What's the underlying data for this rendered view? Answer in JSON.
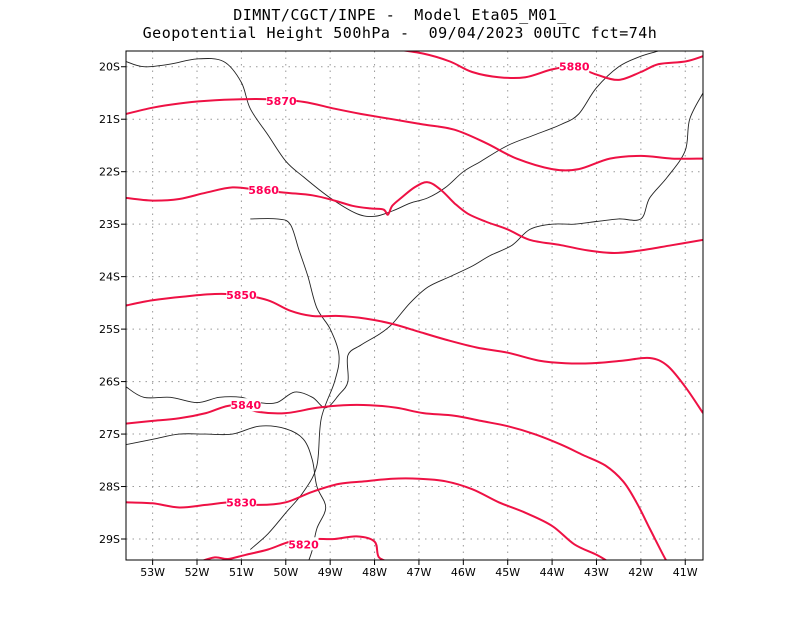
{
  "header": {
    "line1": "DIMNT/CGCT/INPE -  Model Eta05_M01_",
    "line2": "Geopotential Height 500hPa -  09/04/2023 00UTC fct=74h"
  },
  "map": {
    "lon_range": [
      -53.6,
      -40.6
    ],
    "lat_range": [
      -29.4,
      -19.7
    ],
    "lon_ticks": [
      -53,
      -52,
      -51,
      -50,
      -49,
      -48,
      -47,
      -46,
      -45,
      -44,
      -43,
      -42,
      -41
    ],
    "lon_labels": [
      "53W",
      "52W",
      "51W",
      "50W",
      "49W",
      "48W",
      "47W",
      "46W",
      "45W",
      "44W",
      "43W",
      "42W",
      "41W"
    ],
    "lat_ticks": [
      -20,
      -21,
      -22,
      -23,
      -24,
      -25,
      -26,
      -27,
      -28,
      -29
    ],
    "lat_labels": [
      "20S",
      "21S",
      "22S",
      "23S",
      "24S",
      "25S",
      "26S",
      "27S",
      "28S",
      "29S"
    ],
    "grid": true,
    "contour_color": "#ee1144",
    "contour_label_color": "#ff0055",
    "contours": [
      {
        "label": "5880",
        "label_at": [
          -43.5,
          -20.0
        ],
        "points": [
          [
            -47.7,
            -19.65
          ],
          [
            -46.9,
            -19.75
          ],
          [
            -46.3,
            -19.9
          ],
          [
            -45.8,
            -20.1
          ],
          [
            -45.2,
            -20.2
          ],
          [
            -44.6,
            -20.2
          ],
          [
            -44.0,
            -20.05
          ],
          [
            -43.5,
            -20.0
          ],
          [
            -43.0,
            -20.15
          ],
          [
            -42.5,
            -20.25
          ],
          [
            -42.0,
            -20.1
          ],
          [
            -41.6,
            -19.95
          ],
          [
            -41.0,
            -19.9
          ],
          [
            -40.6,
            -19.8
          ]
        ]
      },
      {
        "label": "5870",
        "label_at": [
          -50.1,
          -20.65
        ],
        "points": [
          [
            -53.6,
            -20.9
          ],
          [
            -53.0,
            -20.78
          ],
          [
            -52.4,
            -20.7
          ],
          [
            -51.8,
            -20.65
          ],
          [
            -51.0,
            -20.62
          ],
          [
            -50.4,
            -20.62
          ],
          [
            -49.6,
            -20.67
          ],
          [
            -48.9,
            -20.8
          ],
          [
            -48.3,
            -20.9
          ],
          [
            -47.6,
            -21.0
          ],
          [
            -46.9,
            -21.1
          ],
          [
            -46.2,
            -21.2
          ],
          [
            -45.5,
            -21.45
          ],
          [
            -44.8,
            -21.75
          ],
          [
            -44.0,
            -21.95
          ],
          [
            -43.4,
            -21.95
          ],
          [
            -42.7,
            -21.75
          ],
          [
            -42.0,
            -21.7
          ],
          [
            -41.3,
            -21.75
          ],
          [
            -40.6,
            -21.75
          ]
        ]
      },
      {
        "label": "5860",
        "label_at": [
          -50.5,
          -22.35
        ],
        "points": [
          [
            -53.6,
            -22.5
          ],
          [
            -53.0,
            -22.55
          ],
          [
            -52.4,
            -22.52
          ],
          [
            -51.8,
            -22.4
          ],
          [
            -51.2,
            -22.3
          ],
          [
            -50.6,
            -22.35
          ],
          [
            -50.0,
            -22.4
          ],
          [
            -49.4,
            -22.45
          ],
          [
            -48.9,
            -22.55
          ],
          [
            -48.5,
            -22.65
          ],
          [
            -48.1,
            -22.7
          ],
          [
            -47.8,
            -22.72
          ],
          [
            -47.7,
            -22.82
          ],
          [
            -47.6,
            -22.65
          ],
          [
            -47.4,
            -22.5
          ],
          [
            -47.1,
            -22.3
          ],
          [
            -46.8,
            -22.2
          ],
          [
            -46.5,
            -22.35
          ],
          [
            -46.2,
            -22.6
          ],
          [
            -45.9,
            -22.8
          ],
          [
            -45.5,
            -22.95
          ],
          [
            -45.0,
            -23.1
          ],
          [
            -44.5,
            -23.3
          ],
          [
            -43.8,
            -23.4
          ],
          [
            -43.2,
            -23.5
          ],
          [
            -42.6,
            -23.55
          ],
          [
            -42.0,
            -23.5
          ],
          [
            -41.3,
            -23.4
          ],
          [
            -40.6,
            -23.3
          ]
        ]
      },
      {
        "label": "5850",
        "label_at": [
          -51.0,
          -24.35
        ],
        "points": [
          [
            -53.6,
            -24.55
          ],
          [
            -53.0,
            -24.45
          ],
          [
            -52.3,
            -24.38
          ],
          [
            -51.6,
            -24.33
          ],
          [
            -51.0,
            -24.35
          ],
          [
            -50.4,
            -24.45
          ],
          [
            -49.9,
            -24.65
          ],
          [
            -49.4,
            -24.75
          ],
          [
            -48.8,
            -24.75
          ],
          [
            -48.2,
            -24.8
          ],
          [
            -47.6,
            -24.9
          ],
          [
            -47.0,
            -25.05
          ],
          [
            -46.4,
            -25.2
          ],
          [
            -45.7,
            -25.35
          ],
          [
            -45.0,
            -25.45
          ],
          [
            -44.3,
            -25.6
          ],
          [
            -43.7,
            -25.65
          ],
          [
            -43.1,
            -25.65
          ],
          [
            -42.4,
            -25.6
          ],
          [
            -41.8,
            -25.55
          ],
          [
            -41.4,
            -25.7
          ],
          [
            -41.0,
            -26.1
          ],
          [
            -40.6,
            -26.6
          ]
        ]
      },
      {
        "label": "5840",
        "label_at": [
          -50.9,
          -26.45
        ],
        "points": [
          [
            -53.6,
            -26.8
          ],
          [
            -53.0,
            -26.75
          ],
          [
            -52.4,
            -26.7
          ],
          [
            -51.8,
            -26.6
          ],
          [
            -51.2,
            -26.45
          ],
          [
            -50.6,
            -26.58
          ],
          [
            -50.0,
            -26.6
          ],
          [
            -49.3,
            -26.5
          ],
          [
            -48.7,
            -26.45
          ],
          [
            -48.1,
            -26.45
          ],
          [
            -47.5,
            -26.5
          ],
          [
            -46.9,
            -26.6
          ],
          [
            -46.2,
            -26.65
          ],
          [
            -45.6,
            -26.75
          ],
          [
            -45.0,
            -26.85
          ],
          [
            -44.4,
            -27.0
          ],
          [
            -43.8,
            -27.2
          ],
          [
            -43.3,
            -27.4
          ],
          [
            -42.8,
            -27.6
          ],
          [
            -42.4,
            -27.9
          ],
          [
            -42.1,
            -28.3
          ],
          [
            -41.8,
            -28.8
          ],
          [
            -41.5,
            -29.3
          ],
          [
            -41.4,
            -29.45
          ]
        ]
      },
      {
        "label": "5830",
        "label_at": [
          -51.0,
          -28.3
        ],
        "points": [
          [
            -53.6,
            -28.3
          ],
          [
            -53.0,
            -28.32
          ],
          [
            -52.4,
            -28.4
          ],
          [
            -51.8,
            -28.35
          ],
          [
            -51.2,
            -28.3
          ],
          [
            -50.6,
            -28.35
          ],
          [
            -50.0,
            -28.3
          ],
          [
            -49.4,
            -28.1
          ],
          [
            -48.8,
            -27.95
          ],
          [
            -48.2,
            -27.9
          ],
          [
            -47.6,
            -27.85
          ],
          [
            -47.0,
            -27.85
          ],
          [
            -46.4,
            -27.9
          ],
          [
            -45.8,
            -28.05
          ],
          [
            -45.2,
            -28.3
          ],
          [
            -44.6,
            -28.5
          ],
          [
            -44.0,
            -28.75
          ],
          [
            -43.5,
            -29.1
          ],
          [
            -43.0,
            -29.3
          ],
          [
            -42.7,
            -29.45
          ]
        ]
      },
      {
        "label": "5820",
        "label_at": [
          -49.6,
          -29.1
        ],
        "points": [
          [
            -52.0,
            -29.45
          ],
          [
            -51.6,
            -29.35
          ],
          [
            -51.3,
            -29.38
          ],
          [
            -50.9,
            -29.3
          ],
          [
            -50.4,
            -29.2
          ],
          [
            -49.9,
            -29.05
          ],
          [
            -49.4,
            -29.0
          ],
          [
            -48.9,
            -29.0
          ],
          [
            -48.4,
            -28.95
          ],
          [
            -48.0,
            -29.05
          ],
          [
            -47.9,
            -29.35
          ],
          [
            -47.6,
            -29.45
          ]
        ]
      }
    ],
    "coastline": [
      [
        [
          -53.6,
          -26.1
        ],
        [
          -53.2,
          -26.3
        ],
        [
          -52.6,
          -26.3
        ],
        [
          -52.0,
          -26.4
        ],
        [
          -51.5,
          -26.3
        ],
        [
          -51.0,
          -26.3
        ],
        [
          -50.6,
          -26.4
        ],
        [
          -50.2,
          -26.4
        ],
        [
          -49.8,
          -26.2
        ],
        [
          -49.4,
          -26.3
        ],
        [
          -49.1,
          -26.5
        ],
        [
          -48.8,
          -26.25
        ],
        [
          -48.6,
          -26.0
        ],
        [
          -48.6,
          -25.5
        ],
        [
          -48.3,
          -25.3
        ],
        [
          -47.9,
          -25.1
        ],
        [
          -47.6,
          -24.9
        ],
        [
          -47.2,
          -24.5
        ],
        [
          -46.8,
          -24.2
        ],
        [
          -46.3,
          -24.0
        ],
        [
          -45.8,
          -23.8
        ],
        [
          -45.4,
          -23.6
        ],
        [
          -44.9,
          -23.4
        ],
        [
          -44.5,
          -23.1
        ],
        [
          -44.0,
          -23.0
        ],
        [
          -43.5,
          -23.0
        ],
        [
          -43.0,
          -22.95
        ],
        [
          -42.5,
          -22.9
        ],
        [
          -42.0,
          -22.9
        ],
        [
          -41.8,
          -22.5
        ],
        [
          -41.4,
          -22.1
        ],
        [
          -41.0,
          -21.6
        ],
        [
          -40.9,
          -21.0
        ],
        [
          -40.6,
          -20.5
        ]
      ],
      [
        [
          -53.6,
          -27.2
        ],
        [
          -53.0,
          -27.1
        ],
        [
          -52.4,
          -27.0
        ],
        [
          -51.8,
          -27.0
        ],
        [
          -51.2,
          -27.0
        ],
        [
          -50.6,
          -26.85
        ],
        [
          -50.0,
          -26.9
        ],
        [
          -49.6,
          -27.1
        ],
        [
          -49.4,
          -27.5
        ],
        [
          -49.3,
          -28.0
        ],
        [
          -49.1,
          -28.4
        ],
        [
          -49.3,
          -28.8
        ],
        [
          -49.4,
          -29.2
        ],
        [
          -49.5,
          -29.45
        ]
      ],
      [
        [
          -53.6,
          -19.9
        ],
        [
          -53.2,
          -20.0
        ],
        [
          -52.6,
          -19.95
        ],
        [
          -52.0,
          -19.85
        ],
        [
          -51.4,
          -19.9
        ],
        [
          -51.0,
          -20.3
        ],
        [
          -50.8,
          -20.8
        ],
        [
          -50.4,
          -21.3
        ],
        [
          -50.0,
          -21.8
        ],
        [
          -49.6,
          -22.1
        ],
        [
          -49.0,
          -22.5
        ],
        [
          -48.4,
          -22.8
        ],
        [
          -48.0,
          -22.85
        ],
        [
          -47.6,
          -22.75
        ],
        [
          -47.2,
          -22.6
        ],
        [
          -46.8,
          -22.5
        ],
        [
          -46.4,
          -22.3
        ],
        [
          -46.0,
          -22.0
        ],
        [
          -45.6,
          -21.8
        ],
        [
          -45.0,
          -21.5
        ],
        [
          -44.4,
          -21.3
        ],
        [
          -43.8,
          -21.1
        ],
        [
          -43.4,
          -20.9
        ],
        [
          -43.0,
          -20.4
        ],
        [
          -42.5,
          -20.0
        ],
        [
          -42.0,
          -19.8
        ],
        [
          -41.6,
          -19.7
        ]
      ],
      [
        [
          -50.8,
          -22.9
        ],
        [
          -50.2,
          -22.9
        ],
        [
          -49.9,
          -23.0
        ],
        [
          -49.7,
          -23.5
        ],
        [
          -49.5,
          -24.0
        ],
        [
          -49.3,
          -24.6
        ],
        [
          -49.0,
          -25.0
        ],
        [
          -48.8,
          -25.5
        ],
        [
          -48.9,
          -26.0
        ],
        [
          -49.2,
          -26.7
        ],
        [
          -49.3,
          -27.6
        ],
        [
          -49.6,
          -28.1
        ],
        [
          -50.0,
          -28.5
        ],
        [
          -50.4,
          -28.9
        ],
        [
          -50.8,
          -29.2
        ]
      ]
    ]
  }
}
